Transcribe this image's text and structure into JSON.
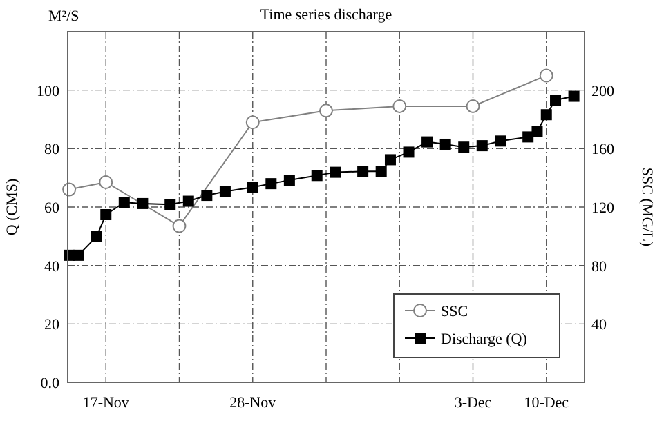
{
  "chart_data": {
    "type": "line",
    "title": "Time series discharge",
    "ylabel": "Q (CMS)",
    "y2label": "SSC (MG/L)",
    "annotations": [
      "M²/S"
    ],
    "categories": [
      null,
      null,
      null,
      null,
      "17-Nov",
      null,
      null,
      null,
      null,
      null,
      null,
      null,
      null,
      null,
      null,
      null,
      null,
      null,
      null,
      null,
      "28-Nov",
      null,
      null,
      null,
      null,
      null,
      null,
      null,
      null,
      null,
      null,
      null,
      null,
      null,
      null,
      null,
      null,
      null,
      null,
      null,
      null,
      null,
      null,
      null,
      "3-Dec",
      null,
      null,
      null,
      null,
      null,
      null,
      null,
      "10-Dec",
      null,
      null,
      null,
      null
    ],
    "ylim": [
      0,
      120
    ],
    "yticks": [
      {
        "value": 0,
        "label": "0.0"
      },
      20,
      40,
      60,
      80,
      100
    ],
    "y2lim": [
      0,
      240
    ],
    "y2ticks": [
      40,
      80,
      120,
      160,
      200
    ],
    "grid": true,
    "legend": "bottom right",
    "line_style": "solid",
    "series": [
      {
        "name": "SSC",
        "color": "#808080",
        "marker": "circle",
        "axis": "y2",
        "values": [
          132,
          null,
          null,
          null,
          137,
          null,
          null,
          null,
          null,
          null,
          null,
          null,
          107,
          null,
          null,
          null,
          null,
          null,
          null,
          null,
          178,
          null,
          null,
          null,
          null,
          null,
          null,
          null,
          186,
          null,
          null,
          null,
          null,
          null,
          null,
          null,
          189,
          null,
          null,
          null,
          null,
          null,
          null,
          null,
          189,
          null,
          null,
          null,
          null,
          null,
          null,
          null,
          210,
          null,
          null,
          null,
          null
        ]
      },
      {
        "name": "Discharge (Q)",
        "color": "#000000",
        "marker": "square",
        "values": [
          43.5,
          43.5,
          null,
          50,
          57.4,
          null,
          61.6,
          null,
          61.2,
          null,
          null,
          60.9,
          null,
          62,
          null,
          64,
          null,
          65.3,
          null,
          null,
          66.8,
          null,
          68,
          null,
          69.2,
          null,
          null,
          70.8,
          null,
          71.9,
          null,
          null,
          72.2,
          null,
          72.2,
          76.2,
          null,
          78.8,
          null,
          82.3,
          null,
          81.5,
          null,
          80.5,
          null,
          81,
          null,
          82.6,
          null,
          null,
          84,
          85.9,
          91.6,
          96.6,
          null,
          97.9,
          null
        ]
      }
    ]
  }
}
